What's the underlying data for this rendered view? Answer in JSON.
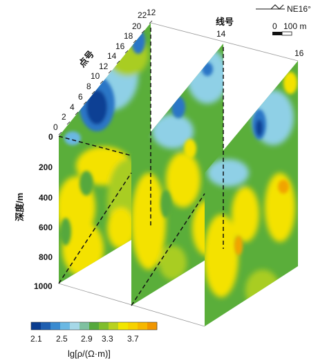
{
  "north_label": "NE16°",
  "scale_bar": {
    "start": "0",
    "end": "100 m"
  },
  "line_axis": {
    "label": "线号",
    "ticks": [
      "12",
      "14",
      "16"
    ]
  },
  "point_axis": {
    "label": "点号",
    "ticks": [
      "0",
      "2",
      "4",
      "6",
      "8",
      "10",
      "12",
      "14",
      "16",
      "18",
      "20",
      "22"
    ]
  },
  "depth_axis": {
    "label": "深度/m",
    "ticks": [
      "0",
      "200",
      "400",
      "600",
      "800",
      "1000"
    ]
  },
  "colorbar": {
    "ticks": [
      "2.1",
      "2.5",
      "2.9",
      "3.3",
      "3.7"
    ],
    "label": "lg[ρ/(Ω·m)]",
    "colors": [
      "#0a3d8f",
      "#1f5fb0",
      "#3a8bd0",
      "#6ab8e3",
      "#a6d8e8",
      "#7fc1a0",
      "#55a83c",
      "#7fbe2c",
      "#b8d21e",
      "#f2e600",
      "#f7d200",
      "#f6b800",
      "#f09600"
    ]
  },
  "palette": {
    "deep_blue": "#0d3f94",
    "blue": "#2a76c6",
    "light_blue": "#8fd0e6",
    "green": "#5aae3a",
    "yellow_green": "#a9cd22",
    "yellow": "#f4e200",
    "orange": "#f1a400"
  }
}
